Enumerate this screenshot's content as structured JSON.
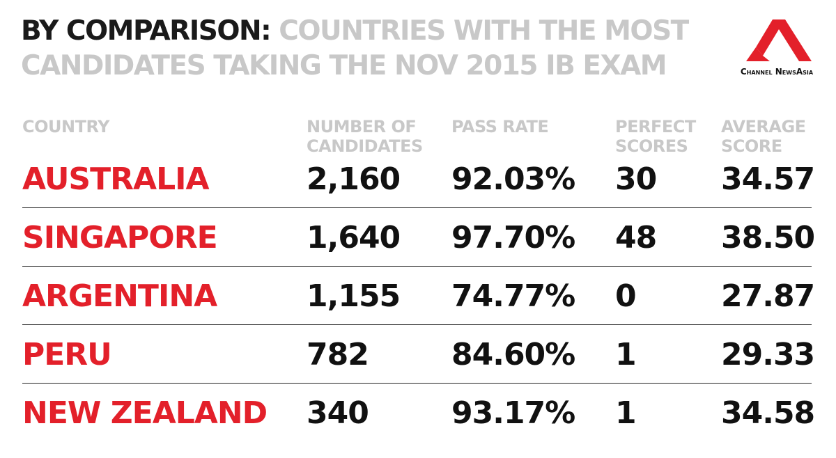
{
  "header": {
    "title_lead": "BY COMPARISON:",
    "title_rest": "COUNTRIES WITH THE MOST CANDIDATES TAKING THE NOV 2015 IB EXAM",
    "logo_text": "Channel NewsAsia"
  },
  "table": {
    "columns": [
      "COUNTRY",
      "NUMBER OF CANDIDATES",
      "PASS RATE",
      "PERFECT SCORES",
      "AVERAGE SCORE"
    ],
    "rows": [
      [
        "AUSTRALIA",
        "2,160",
        "92.03%",
        "30",
        "34.57"
      ],
      [
        "SINGAPORE",
        "1,640",
        "97.70%",
        "48",
        "38.50"
      ],
      [
        "ARGENTINA",
        "1,155",
        "74.77%",
        "0",
        "27.87"
      ],
      [
        "PERU",
        "782",
        "84.60%",
        "1",
        "29.33"
      ],
      [
        "NEW ZEALAND",
        "340",
        "93.17%",
        "1",
        "34.58"
      ]
    ]
  }
}
